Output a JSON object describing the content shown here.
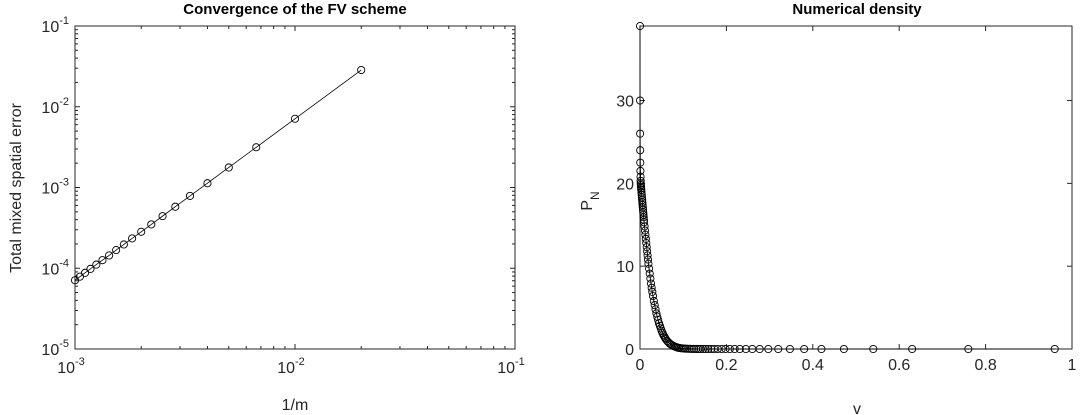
{
  "chart_data": [
    {
      "type": "line",
      "title": "Convergence of the FV scheme",
      "xlabel": "1/m",
      "ylabel": "Total mixed spatial error",
      "xscale": "log",
      "yscale": "log",
      "xlim": [
        0.001,
        0.1
      ],
      "ylim": [
        1e-05,
        0.1
      ],
      "xticks": [
        {
          "base": "10",
          "exp": "-3",
          "value": 0.001
        },
        {
          "base": "10",
          "exp": "-2",
          "value": 0.01
        },
        {
          "base": "10",
          "exp": "-1",
          "value": 0.1
        }
      ],
      "yticks": [
        {
          "base": "10",
          "exp": "-5",
          "value": 1e-05
        },
        {
          "base": "10",
          "exp": "-4",
          "value": 0.0001
        },
        {
          "base": "10",
          "exp": "-3",
          "value": 0.001
        },
        {
          "base": "10",
          "exp": "-2",
          "value": 0.01
        },
        {
          "base": "10",
          "exp": "-1",
          "value": 0.1
        }
      ],
      "grid": false,
      "marker": "circle",
      "series": [
        {
          "x": [
            0.02,
            0.01,
            0.006667,
            0.005,
            0.004,
            0.003333,
            0.002857,
            0.0025,
            0.002222,
            0.002,
            0.001818,
            0.001667,
            0.001538,
            0.001429,
            0.001333,
            0.00125,
            0.001176,
            0.001111,
            0.001053,
            0.001
          ],
          "y": [
            0.0285,
            0.0071,
            0.00315,
            0.00177,
            0.00113,
            0.000787,
            0.000578,
            0.000442,
            0.000349,
            0.000283,
            0.000234,
            0.000197,
            0.000168,
            0.000144,
            0.000126,
            0.000111,
            9.83e-05,
            8.77e-05,
            7.87e-05,
            7.1e-05
          ]
        }
      ]
    },
    {
      "type": "line",
      "title": "Numerical density",
      "xlabel": "v",
      "ylabel": "P",
      "ylabel_sub": "N",
      "xlim": [
        0,
        1
      ],
      "ylim": [
        0,
        39
      ],
      "xticks": [
        "0",
        "0.2",
        "0.4",
        "0.6",
        "0.8",
        "1"
      ],
      "yticks": [
        "0",
        "10",
        "20",
        "30"
      ],
      "grid": false,
      "marker": "circle",
      "series": [
        {
          "x": [
            0.0,
            0.00018,
            0.00028,
            0.0005,
            0.00065,
            0.001,
            0.00125,
            0.0015,
            0.00175,
            0.002,
            0.0023,
            0.0026,
            0.003,
            0.0035,
            0.004,
            0.0045,
            0.005,
            0.0055,
            0.006,
            0.0065,
            0.007,
            0.0075,
            0.008,
            0.0085,
            0.009,
            0.0095,
            0.0105,
            0.0115,
            0.0125,
            0.0135,
            0.0145,
            0.0155,
            0.0165,
            0.0175,
            0.0185,
            0.0195,
            0.021,
            0.0225,
            0.024,
            0.0255,
            0.027,
            0.0285,
            0.03,
            0.032,
            0.034,
            0.036,
            0.038,
            0.04,
            0.042,
            0.044,
            0.046,
            0.048,
            0.05,
            0.052,
            0.054,
            0.056,
            0.058,
            0.06,
            0.063,
            0.066,
            0.069,
            0.072,
            0.075,
            0.078,
            0.081,
            0.084,
            0.087,
            0.09,
            0.094,
            0.098,
            0.102,
            0.106,
            0.11,
            0.115,
            0.12,
            0.125,
            0.13,
            0.135,
            0.14,
            0.146,
            0.152,
            0.158,
            0.165,
            0.172,
            0.18,
            0.189,
            0.198,
            0.208,
            0.219,
            0.231,
            0.245,
            0.26,
            0.277,
            0.297,
            0.32,
            0.347,
            0.38,
            0.42,
            0.472,
            0.54,
            0.63,
            0.76,
            0.96
          ],
          "y": [
            39.0,
            30.0,
            26.0,
            24.0,
            22.5,
            21.5,
            20.8,
            20.3,
            20.0,
            19.8,
            19.6,
            19.4,
            19.2,
            18.9,
            18.6,
            18.3,
            18.0,
            17.7,
            17.4,
            17.1,
            16.8,
            16.5,
            16.2,
            15.9,
            15.6,
            15.3,
            14.8,
            14.3,
            13.8,
            13.3,
            12.8,
            12.3,
            11.8,
            11.3,
            10.8,
            10.3,
            9.7,
            9.1,
            8.5,
            7.9,
            7.4,
            6.9,
            6.4,
            5.8,
            5.3,
            4.8,
            4.3,
            3.9,
            3.5,
            3.1,
            2.8,
            2.5,
            2.2,
            1.95,
            1.72,
            1.52,
            1.34,
            1.18,
            0.97,
            0.8,
            0.65,
            0.53,
            0.43,
            0.35,
            0.28,
            0.22,
            0.17,
            0.13,
            0.1,
            0.075,
            0.055,
            0.04,
            0.03,
            0.02,
            0.013,
            0.009,
            0.006,
            0.004,
            0.003,
            0.002,
            0.001,
            0.001,
            0.0,
            0.0,
            0.0,
            0.0,
            0.0,
            0.0,
            0.0,
            0.0,
            0.0,
            0.0,
            0.0,
            0.0,
            0.0,
            0.0,
            0.0,
            0.0,
            0.0,
            0.0,
            0.0,
            0.0,
            0.0
          ]
        }
      ]
    }
  ]
}
